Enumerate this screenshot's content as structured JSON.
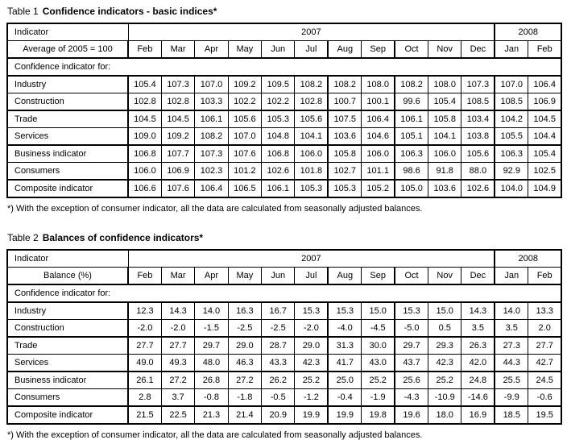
{
  "shared": {
    "indicator_label": "Indicator",
    "year_left": "2007",
    "year_right": "2008",
    "months": [
      "Feb",
      "Mar",
      "Apr",
      "May",
      "Jun",
      "Jul",
      "Aug",
      "Sep",
      "Oct",
      "Nov",
      "Dec",
      "Jan",
      "Feb"
    ],
    "group_label": "Confidence indicator for:",
    "footnote": "*) With the exception of consumer indicator, all the data are calculated from seasonally adjusted balances."
  },
  "table1": {
    "title_prefix": "Table 1",
    "title_main": "Confidence indicators - basic indices*",
    "subtitle": "Average of 2005 = 100",
    "rows": [
      {
        "label": "Industry",
        "values": [
          "105.4",
          "107.3",
          "107.0",
          "109.2",
          "109.5",
          "108.2",
          "108.2",
          "108.0",
          "108.2",
          "108.0",
          "107.3",
          "107.0",
          "106.4"
        ]
      },
      {
        "label": "Construction",
        "values": [
          "102.8",
          "102.8",
          "103.3",
          "102.2",
          "102.2",
          "102.8",
          "100.7",
          "100.1",
          "99.6",
          "105.4",
          "108.5",
          "108.5",
          "106.9"
        ]
      },
      {
        "label": "Trade",
        "values": [
          "104.5",
          "104.5",
          "106.1",
          "105.6",
          "105.3",
          "105.6",
          "107.5",
          "106.4",
          "106.1",
          "105.8",
          "103.4",
          "104.2",
          "104.5"
        ]
      },
      {
        "label": "Services",
        "values": [
          "109.0",
          "109.2",
          "108.2",
          "107.0",
          "104.8",
          "104.1",
          "103.6",
          "104.6",
          "105.1",
          "104.1",
          "103.8",
          "105.5",
          "104.4"
        ]
      },
      {
        "label": "Business indicator",
        "values": [
          "106.8",
          "107.7",
          "107.3",
          "107.6",
          "106.8",
          "106.0",
          "105.8",
          "106.0",
          "106.3",
          "106.0",
          "105.6",
          "106.3",
          "105.4"
        ]
      },
      {
        "label": "Consumers",
        "values": [
          "106.0",
          "106.9",
          "102.3",
          "101.2",
          "102.6",
          "101.8",
          "102.7",
          "101.1",
          "98.6",
          "91.8",
          "88.0",
          "92.9",
          "102.5"
        ]
      },
      {
        "label": "Composite indicator",
        "values": [
          "106.6",
          "107.6",
          "106.4",
          "106.5",
          "106.1",
          "105.3",
          "105.3",
          "105.2",
          "105.0",
          "103.6",
          "102.6",
          "104.0",
          "104.9"
        ]
      }
    ]
  },
  "table2": {
    "title_prefix": "Table 2",
    "title_main": "Balances of confidence indicators*",
    "subtitle": "Balance (%)",
    "rows": [
      {
        "label": "Industry",
        "values": [
          "12.3",
          "14.3",
          "14.0",
          "16.3",
          "16.7",
          "15.3",
          "15.3",
          "15.0",
          "15.3",
          "15.0",
          "14.3",
          "14.0",
          "13.3"
        ]
      },
      {
        "label": "Construction",
        "values": [
          "-2.0",
          "-2.0",
          "-1.5",
          "-2.5",
          "-2.5",
          "-2.0",
          "-4.0",
          "-4.5",
          "-5.0",
          "0.5",
          "3.5",
          "3.5",
          "2.0"
        ]
      },
      {
        "label": "Trade",
        "values": [
          "27.7",
          "27.7",
          "29.7",
          "29.0",
          "28.7",
          "29.0",
          "31.3",
          "30.0",
          "29.7",
          "29.3",
          "26.3",
          "27.3",
          "27.7"
        ]
      },
      {
        "label": "Services",
        "values": [
          "49.0",
          "49.3",
          "48.0",
          "46.3",
          "43.3",
          "42.3",
          "41.7",
          "43.0",
          "43.7",
          "42.3",
          "42.0",
          "44.3",
          "42.7"
        ]
      },
      {
        "label": "Business indicator",
        "values": [
          "26.1",
          "27.2",
          "26.8",
          "27.2",
          "26.2",
          "25.2",
          "25.0",
          "25.2",
          "25.6",
          "25.2",
          "24.8",
          "25.5",
          "24.5"
        ]
      },
      {
        "label": "Consumers",
        "values": [
          "2.8",
          "3.7",
          "-0.8",
          "-1.8",
          "-0.5",
          "-1.2",
          "-0.4",
          "-1.9",
          "-4.3",
          "-10.9",
          "-14.6",
          "-9.9",
          "-0.6"
        ]
      },
      {
        "label": "Composite indicator",
        "values": [
          "21.5",
          "22.5",
          "21.3",
          "21.4",
          "20.9",
          "19.9",
          "19.9",
          "19.8",
          "19.6",
          "18.0",
          "16.9",
          "18.5",
          "19.5"
        ]
      }
    ]
  },
  "layout": {
    "thick_left_month_indices": [
      0,
      6,
      8,
      11
    ],
    "thick_bottom_row_indices": [
      1,
      3,
      5
    ]
  }
}
